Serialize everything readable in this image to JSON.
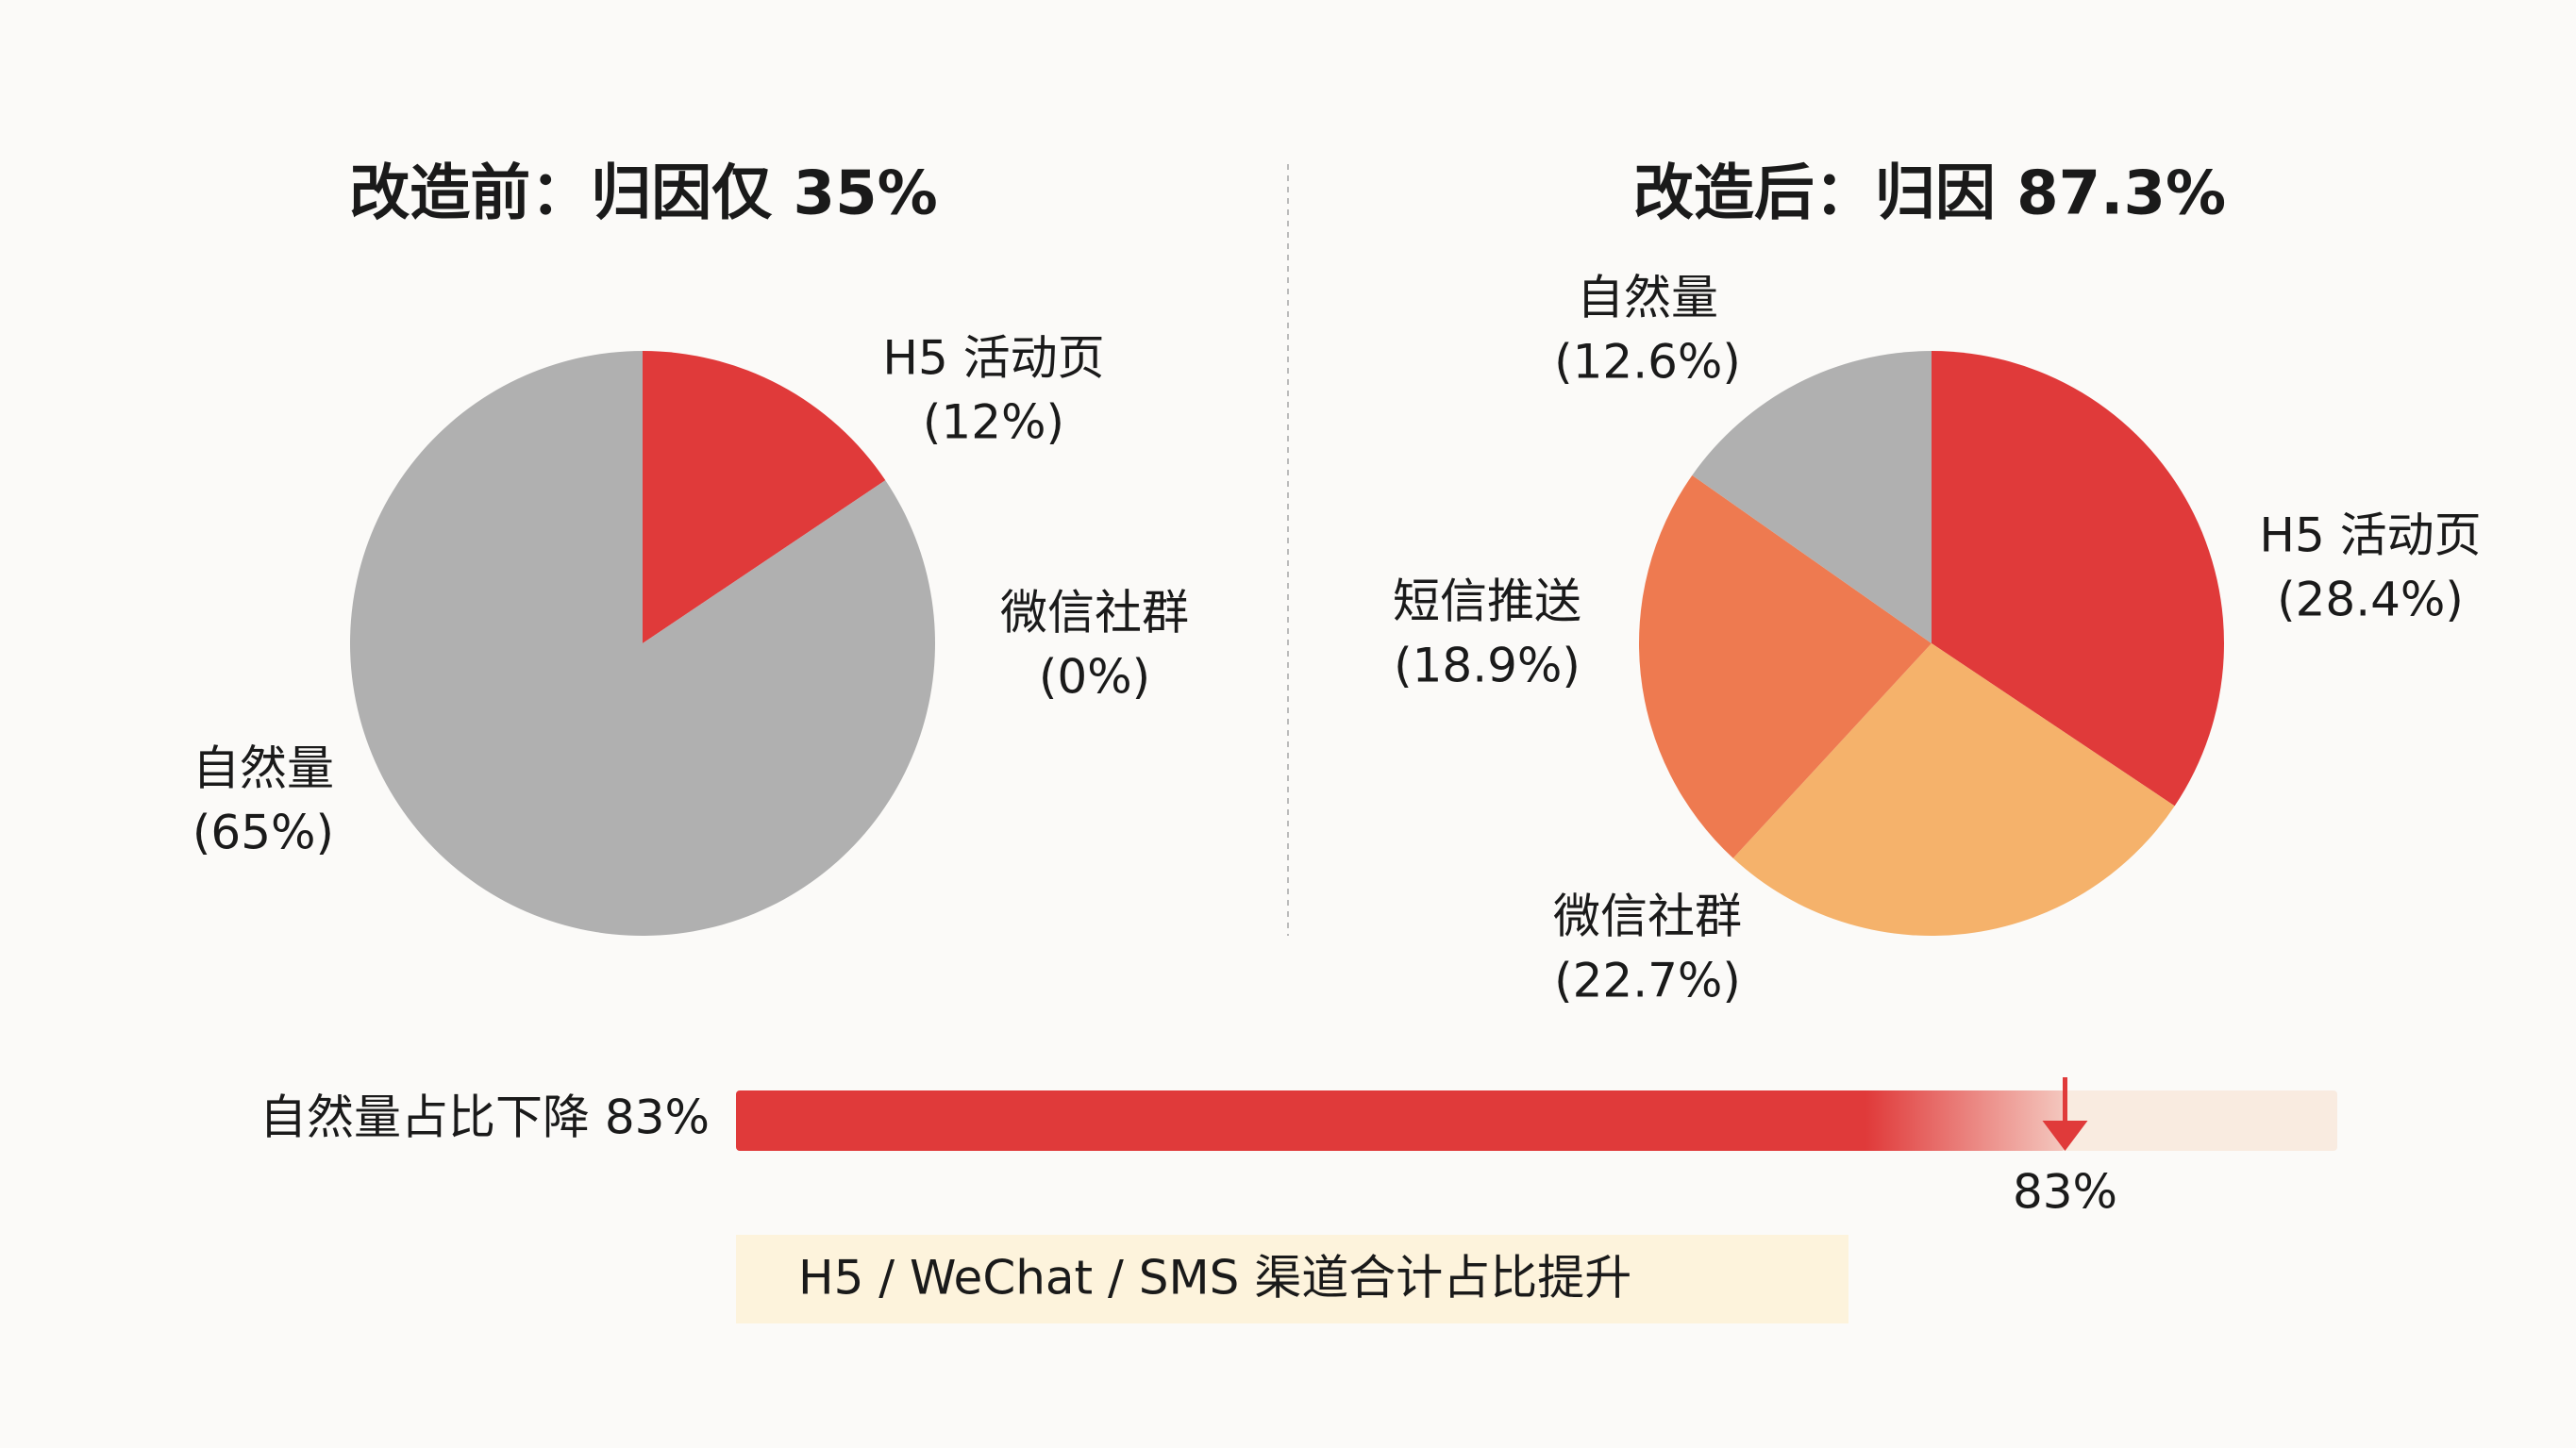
{
  "chart_data": [
    {
      "type": "pie",
      "title": "改造前：归因仅 35%",
      "categories": [
        "H5 活动页",
        "微信社群",
        "自然量"
      ],
      "values": [
        12,
        0,
        65
      ],
      "value_labels": [
        "(12%)",
        "(0%)",
        "(65%)"
      ],
      "colors": [
        "#e03a3a",
        "#f5b26b",
        "#b0b0b0"
      ]
    },
    {
      "type": "pie",
      "title": "改造后：归因 87.3%",
      "categories": [
        "H5 活动页",
        "微信社群",
        "短信推送",
        "自然量"
      ],
      "values": [
        28.4,
        22.7,
        18.9,
        12.6
      ],
      "value_labels": [
        "(28.4%)",
        "(22.7%)",
        "(18.9%)",
        "(12.6%)"
      ],
      "colors": [
        "#e03a3a",
        "#f5b26b",
        "#ee7a50",
        "#b0b0b0"
      ]
    },
    {
      "type": "progress",
      "label": "自然量占比下降 83%",
      "values": [
        83
      ],
      "value_labels": [
        "83%"
      ],
      "xlim": [
        0,
        100
      ],
      "color": "#e03a3a",
      "annotation": "H5 / WeChat / SMS 渠道合计占比提升"
    }
  ]
}
